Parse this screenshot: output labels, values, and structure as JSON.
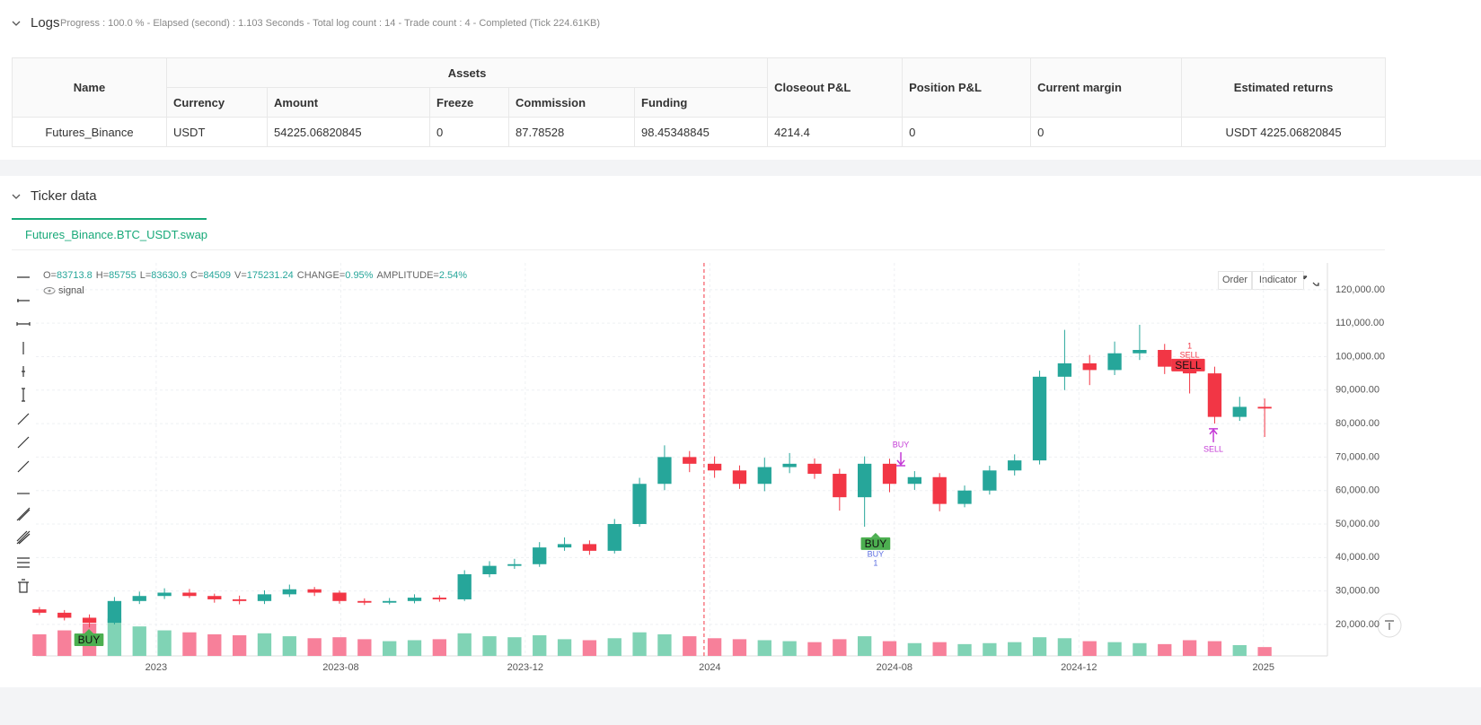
{
  "logs": {
    "title": "Logs",
    "status": "Progress : 100.0 % - Elapsed (second) : 1.103 Seconds - Total log count : 14 - Trade count : 4 - Completed (Tick 224.61KB)"
  },
  "table": {
    "group_header": "Assets",
    "headers": [
      "Name",
      "Currency",
      "Amount",
      "Freeze",
      "Commission",
      "Funding",
      "Closeout P&L",
      "Position P&L",
      "Current margin",
      "Estimated returns"
    ],
    "rows": [
      [
        "Futures_Binance",
        "USDT",
        "54225.06820845",
        "0",
        "87.78528",
        "98.45348845",
        "4214.4",
        "0",
        "0",
        "USDT 4225.06820845"
      ]
    ]
  },
  "ticker": {
    "title": "Ticker data",
    "tab": "Futures_Binance.BTC_USDT.swap"
  },
  "chart_data": {
    "type": "candlestick",
    "legend": [
      {
        "label": "O=",
        "value": "83713.8"
      },
      {
        "label": "H=",
        "value": "85755"
      },
      {
        "label": "L=",
        "value": "83630.9"
      },
      {
        "label": "C=",
        "value": "84509"
      },
      {
        "label": "V=",
        "value": "175231.24"
      },
      {
        "label": "CHANGE=",
        "value": "0.95%"
      },
      {
        "label": "AMPLITUDE=",
        "value": "2.54%"
      }
    ],
    "indicator": "signal",
    "buttons": [
      "Order",
      "Indicator"
    ],
    "up_color": "#26a69a",
    "down_color": "#f23645",
    "up_volume_color": "#80d3b5",
    "down_volume_color": "#f7809a",
    "x": [
      0,
      1,
      2,
      3,
      4,
      5,
      6,
      7,
      8,
      9,
      10,
      11,
      12,
      13,
      14,
      15,
      16,
      17,
      18,
      19,
      20,
      21,
      22,
      23,
      24,
      25,
      26,
      27,
      28,
      29,
      30,
      31,
      32,
      33,
      34,
      35,
      36,
      37,
      38,
      39,
      40,
      41,
      42,
      43,
      44,
      45,
      46,
      47,
      48,
      49
    ],
    "open": [
      24500,
      23500,
      22000,
      20500,
      27000,
      28500,
      29500,
      28500,
      27500,
      27000,
      29000,
      30500,
      29500,
      27000,
      26500,
      27000,
      28000,
      27500,
      35000,
      37500,
      38000,
      43000,
      44000,
      42000,
      50000,
      62000,
      70000,
      68000,
      66000,
      62000,
      67000,
      68000,
      65000,
      58000,
      68000,
      62000,
      64000,
      56000,
      60000,
      66000,
      69000,
      94000,
      98000,
      96000,
      101000,
      102000,
      97000,
      95000,
      82000,
      85000
    ],
    "high": [
      25200,
      24300,
      23000,
      28200,
      29800,
      30800,
      30600,
      29200,
      28600,
      30200,
      31900,
      31200,
      30100,
      27800,
      27900,
      29000,
      28700,
      36200,
      38900,
      39600,
      44600,
      46000,
      45100,
      51500,
      63800,
      73500,
      71800,
      70200,
      67500,
      69800,
      71200,
      69600,
      66500,
      70200,
      69500,
      65800,
      65200,
      61500,
      67400,
      70800,
      95800,
      108000,
      100500,
      104500,
      109500,
      103800,
      99500,
      97000,
      88000,
      87500
    ],
    "low": [
      22800,
      21200,
      19100,
      20000,
      26100,
      27600,
      27900,
      26500,
      26000,
      26100,
      28200,
      28500,
      26200,
      25800,
      26000,
      26300,
      26800,
      27000,
      34100,
      36600,
      37200,
      42000,
      40800,
      41200,
      49200,
      60100,
      65500,
      63800,
      60500,
      59800,
      65200,
      63500,
      54000,
      49200,
      59500,
      60200,
      53800,
      55000,
      58800,
      64500,
      67800,
      90000,
      91500,
      94500,
      99000,
      94800,
      89000,
      80000,
      80800,
      76000
    ],
    "close": [
      23500,
      22000,
      20500,
      27000,
      28500,
      29500,
      28500,
      27500,
      27000,
      29000,
      30500,
      29500,
      27000,
      26500,
      27000,
      28000,
      27500,
      35000,
      37500,
      38000,
      43000,
      44000,
      42000,
      50000,
      62000,
      70000,
      68000,
      66000,
      62000,
      67000,
      68000,
      65000,
      58000,
      68000,
      62000,
      64000,
      56000,
      60000,
      66000,
      69000,
      94000,
      98000,
      96000,
      101000,
      102000,
      97000,
      95000,
      82000,
      85000,
      84500
    ],
    "volume": [
      220000,
      260000,
      330000,
      380000,
      300000,
      260000,
      240000,
      220000,
      210000,
      230000,
      200000,
      180000,
      190000,
      170000,
      150000,
      160000,
      170000,
      230000,
      200000,
      190000,
      210000,
      170000,
      160000,
      180000,
      240000,
      220000,
      200000,
      180000,
      170000,
      160000,
      150000,
      140000,
      170000,
      200000,
      150000,
      130000,
      140000,
      120000,
      130000,
      140000,
      190000,
      180000,
      150000,
      140000,
      130000,
      120000,
      160000,
      150000,
      110000,
      90000
    ],
    "volume_lim": [
      0,
      4000000
    ],
    "xlim": [
      -0.14,
      51.51
    ],
    "xticks": [
      {
        "value": 4.67,
        "label": "2023"
      },
      {
        "value": 12.05,
        "label": "2023-08"
      },
      {
        "value": 19.43,
        "label": "2023-12"
      },
      {
        "value": 26.81,
        "label": "2024"
      },
      {
        "value": 34.19,
        "label": "2024-08"
      },
      {
        "value": 41.57,
        "label": "2024-12"
      },
      {
        "value": 48.95,
        "label": "2025"
      }
    ],
    "ylim": [
      10600,
      128000
    ],
    "yticks": [
      {
        "value": 20000,
        "label": "20,000.00"
      },
      {
        "value": 30000,
        "label": "30,000.00"
      },
      {
        "value": 40000,
        "label": "40,000.00"
      },
      {
        "value": 50000,
        "label": "50,000.00"
      },
      {
        "value": 60000,
        "label": "60,000.00"
      },
      {
        "value": 70000,
        "label": "70,000.00"
      },
      {
        "value": 80000,
        "label": "80,000.00"
      },
      {
        "value": 90000,
        "label": "90,000.00"
      },
      {
        "value": 100000,
        "label": "100,000.00"
      },
      {
        "value": 110000,
        "label": "110,000.00"
      },
      {
        "value": 120000,
        "label": "120,000.00"
      }
    ],
    "grid": true,
    "marker_line": 26.58,
    "annotations": [
      {
        "text": "BUY",
        "x": 1.98,
        "y": 15440,
        "style": "box-green"
      },
      {
        "text": "BUY",
        "x": 33.44,
        "y": 44130,
        "style": "box-green"
      },
      {
        "text": "BUY",
        "x": 33.44,
        "y": 40900,
        "style": "text-blue"
      },
      {
        "text": "1",
        "x": 33.44,
        "y": 38200,
        "style": "text-blue"
      },
      {
        "text": "SELL",
        "x": 45.94,
        "y": 97480,
        "style": "box-red"
      },
      {
        "text": "SELL",
        "x": 46.0,
        "y": 100400,
        "style": "text-red"
      },
      {
        "text": "1",
        "x": 46.0,
        "y": 103100,
        "style": "text-red"
      },
      {
        "text": "BUY",
        "x": 34.45,
        "y": 73600,
        "style": "buy-arrow"
      },
      {
        "text": "SELL",
        "x": 46.95,
        "y": 72280,
        "style": "sell-arrow"
      }
    ]
  }
}
